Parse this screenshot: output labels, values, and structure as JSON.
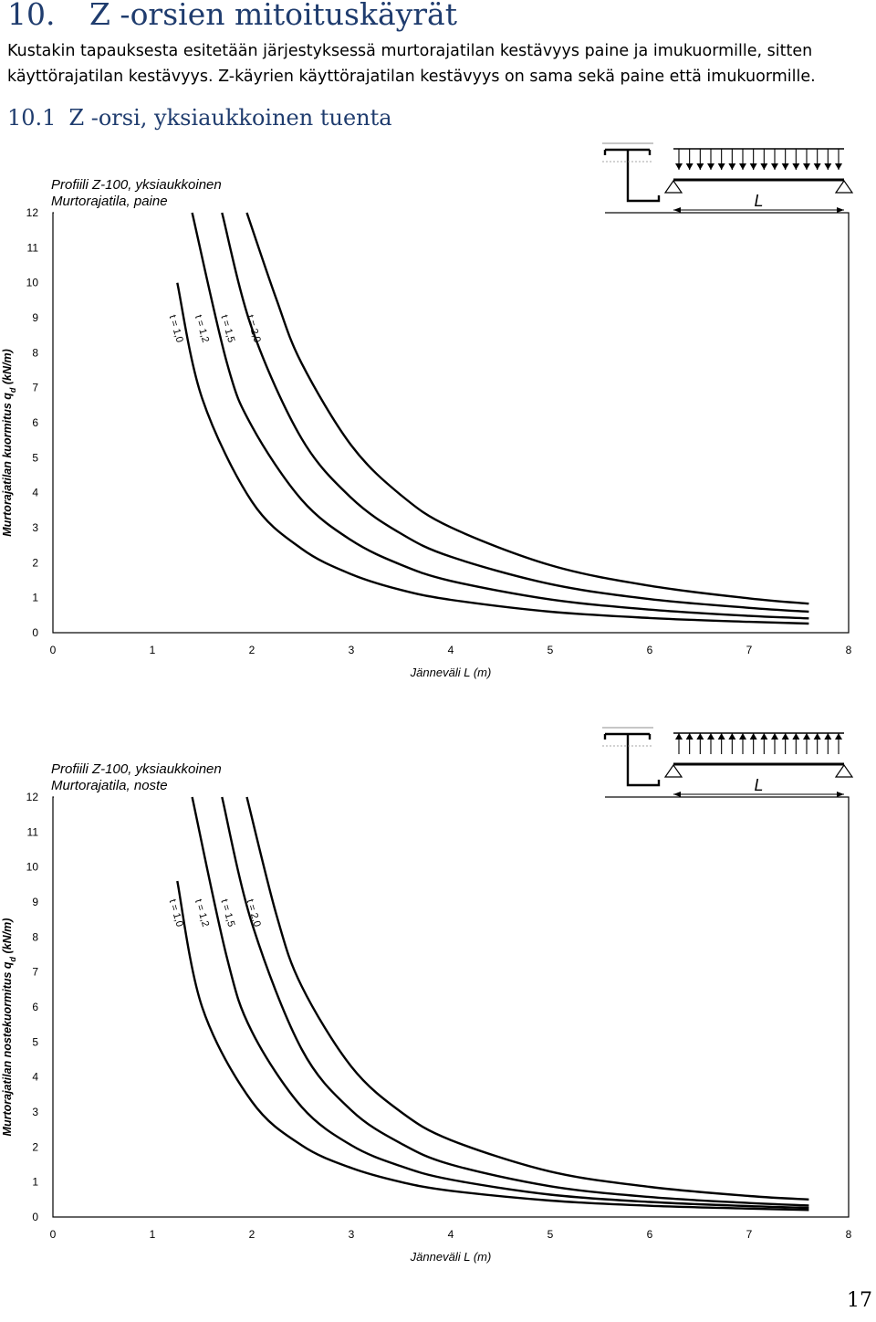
{
  "header": {
    "number": "10.",
    "title": "Z -orsien mitoituskäyrät",
    "intro": "Kustakin tapauksesta esitetään järjestyksessä murtorajatilan kestävyys paine ja imukuormille, sitten käyttörajatilan kestävyys. Z-käyrien käyttörajatilan kestävyys on sama sekä paine että imukuormille."
  },
  "section": {
    "number": "10.1",
    "title": "Z -orsi, yksiaukkoinen tuenta"
  },
  "page_number": "17",
  "chart_data": [
    {
      "type": "line",
      "title": "Profiili Z-100, yksiaukkoinen",
      "subtitle": "Murtorajatila, paine",
      "xlabel": "Jänneväli L (m)",
      "ylabel_main": "Murtorajatilan kuormitus q",
      "ylabel_sub": "d",
      "ylabel_unit": " (kN/m)",
      "xlim": [
        0,
        8
      ],
      "ylim": [
        0,
        12
      ],
      "xticks": [
        "0",
        "1",
        "2",
        "3",
        "4",
        "5",
        "6",
        "7",
        "8"
      ],
      "yticks": [
        "0",
        "1",
        "2",
        "3",
        "4",
        "5",
        "6",
        "7",
        "8",
        "9",
        "10",
        "11",
        "12"
      ],
      "grid": false,
      "load_direction": "down",
      "beam_label": "L",
      "series": [
        {
          "name": "t = 1,0",
          "x": [
            1.25,
            1.5,
            2,
            2.5,
            3,
            3.5,
            4,
            5,
            6,
            7,
            7.6
          ],
          "y": [
            10.0,
            6.7,
            3.75,
            2.4,
            1.67,
            1.22,
            0.94,
            0.6,
            0.42,
            0.31,
            0.26
          ]
        },
        {
          "name": "t = 1,2",
          "x": [
            1.4,
            1.75,
            2,
            2.5,
            3,
            3.5,
            4,
            5,
            6,
            7,
            7.6
          ],
          "y": [
            12.0,
            7.7,
            5.9,
            3.8,
            2.64,
            1.94,
            1.48,
            0.95,
            0.66,
            0.48,
            0.41
          ]
        },
        {
          "name": "t = 1,5",
          "x": [
            1.7,
            2,
            2.5,
            3,
            3.5,
            4,
            5,
            6,
            7,
            7.6
          ],
          "y": [
            12.0,
            8.7,
            5.55,
            3.85,
            2.83,
            2.17,
            1.39,
            0.96,
            0.71,
            0.6
          ]
        },
        {
          "name": "t = 2,0",
          "x": [
            1.95,
            2.25,
            2.5,
            3,
            3.5,
            4,
            5,
            6,
            7,
            7.6
          ],
          "y": [
            12.0,
            9.5,
            7.7,
            5.35,
            3.93,
            3.01,
            1.93,
            1.34,
            0.98,
            0.83
          ]
        }
      ]
    },
    {
      "type": "line",
      "title": "Profiili Z-100, yksiaukkoinen",
      "subtitle": "Murtorajatila, noste",
      "xlabel": "Jänneväli L (m)",
      "ylabel_main": "Murtorajatilan nostekuormitus q",
      "ylabel_sub": "d",
      "ylabel_unit": " (kN/m)",
      "xlim": [
        0,
        8
      ],
      "ylim": [
        0,
        12
      ],
      "xticks": [
        "0",
        "1",
        "2",
        "3",
        "4",
        "5",
        "6",
        "7",
        "8"
      ],
      "yticks": [
        "0",
        "1",
        "2",
        "3",
        "4",
        "5",
        "6",
        "7",
        "8",
        "9",
        "10",
        "11",
        "12"
      ],
      "grid": false,
      "load_direction": "up",
      "beam_label": "L",
      "series": [
        {
          "name": "t = 1,0",
          "x": [
            1.25,
            1.5,
            2,
            2.5,
            3,
            3.5,
            4,
            5,
            6,
            7,
            7.6
          ],
          "y": [
            9.6,
            6.0,
            3.3,
            2.05,
            1.4,
            1.0,
            0.75,
            0.47,
            0.32,
            0.24,
            0.2
          ]
        },
        {
          "name": "t = 1,2",
          "x": [
            1.4,
            1.75,
            2,
            2.5,
            3,
            3.5,
            4,
            5,
            6,
            7,
            7.6
          ],
          "y": [
            12.0,
            7.4,
            5.3,
            3.15,
            2.05,
            1.45,
            1.07,
            0.64,
            0.43,
            0.31,
            0.26
          ]
        },
        {
          "name": "t = 1,5",
          "x": [
            1.7,
            2,
            2.5,
            3,
            3.5,
            4,
            5,
            6,
            7,
            7.6
          ],
          "y": [
            12.0,
            8.4,
            4.8,
            3.05,
            2.1,
            1.5,
            0.88,
            0.57,
            0.4,
            0.33
          ]
        },
        {
          "name": "t = 2,0",
          "x": [
            1.95,
            2.25,
            2.5,
            3,
            3.5,
            4,
            5,
            6,
            7,
            7.6
          ],
          "y": [
            12.0,
            8.6,
            6.6,
            4.3,
            3.0,
            2.2,
            1.3,
            0.86,
            0.6,
            0.5
          ]
        }
      ]
    }
  ]
}
